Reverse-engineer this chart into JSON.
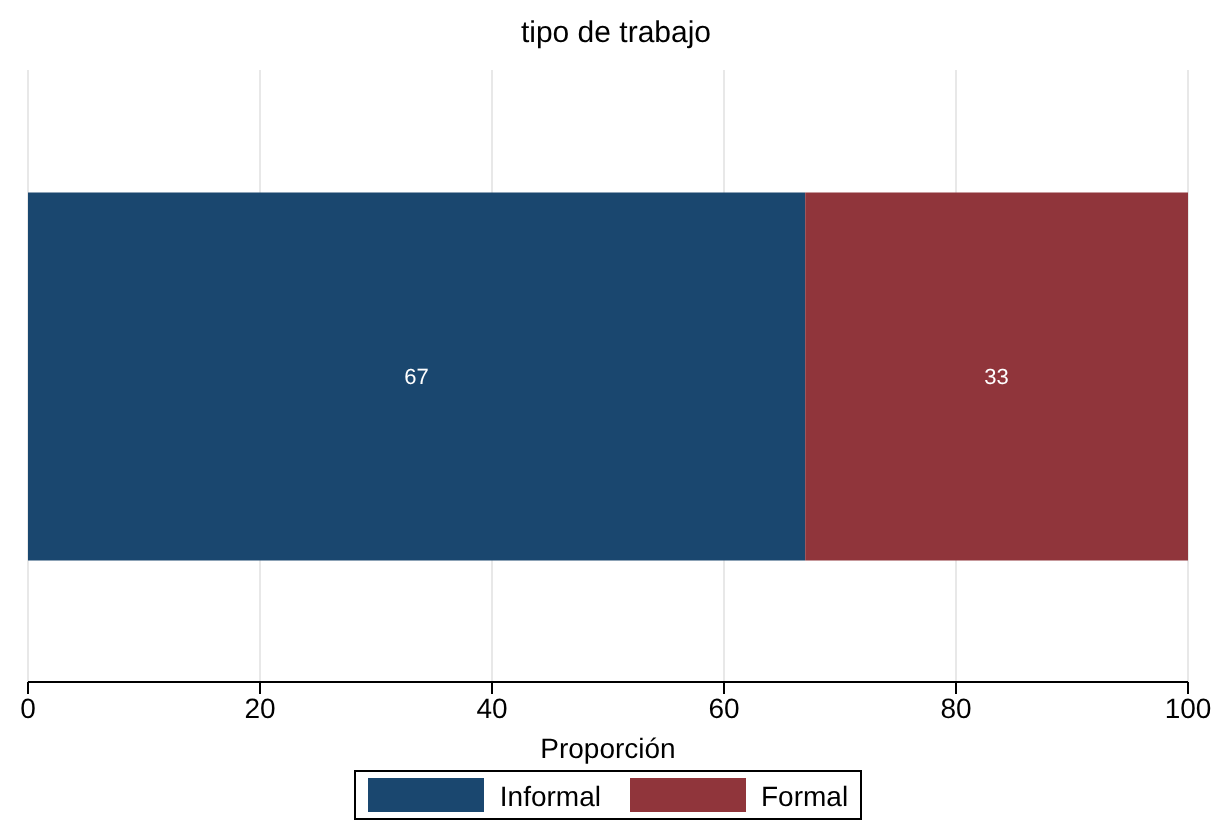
{
  "chart_data": {
    "type": "bar",
    "title": "tipo de trabajo",
    "xlabel": "Proporción",
    "orientation": "horizontal",
    "stacked": true,
    "categories": [
      null
    ],
    "series": [
      {
        "name": "Informal",
        "color": "#1a476f",
        "values": [
          67
        ]
      },
      {
        "name": "Formal",
        "color": "#90353b",
        "values": [
          33
        ]
      }
    ],
    "xlim": [
      0,
      100
    ],
    "xticks": [
      0,
      20,
      40,
      60,
      80,
      100
    ],
    "grid": "x",
    "legend": "bottom",
    "data_labels": true,
    "tick_labels": "x"
  }
}
